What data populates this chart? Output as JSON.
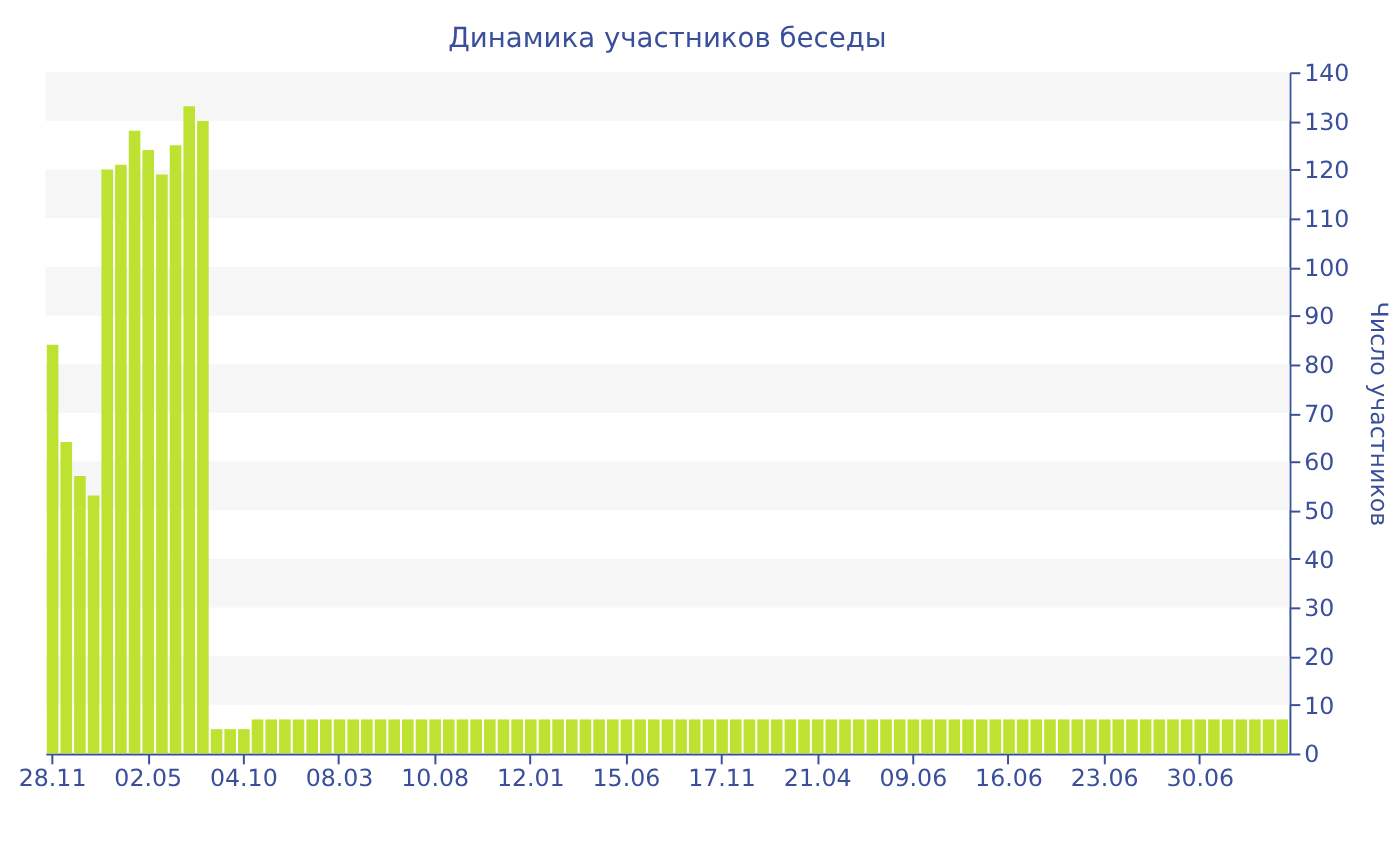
{
  "chart_data": {
    "type": "bar",
    "title": "Динамика участников беседы",
    "ylabel": "Число участников",
    "categories": [
      "28.11",
      null,
      null,
      null,
      null,
      null,
      null,
      "02.05",
      null,
      null,
      null,
      null,
      null,
      null,
      "04.10",
      null,
      null,
      null,
      null,
      null,
      null,
      "08.03",
      null,
      null,
      null,
      null,
      null,
      null,
      "10.08",
      null,
      null,
      null,
      null,
      null,
      null,
      "12.01",
      null,
      null,
      null,
      null,
      null,
      null,
      "15.06",
      null,
      null,
      null,
      null,
      null,
      null,
      "17.11",
      null,
      null,
      null,
      null,
      null,
      null,
      "21.04",
      null,
      null,
      null,
      null,
      null,
      null,
      "09.06",
      null,
      null,
      null,
      null,
      null,
      null,
      "16.06",
      null,
      null,
      null,
      null,
      null,
      null,
      "23.06",
      null,
      null,
      null,
      null,
      null,
      null,
      "30.06",
      null,
      null,
      null,
      null,
      null,
      null
    ],
    "values": [
      84,
      64,
      57,
      53,
      120,
      121,
      128,
      124,
      119,
      125,
      133,
      130,
      5,
      5,
      5,
      7,
      7,
      7,
      7,
      7,
      7,
      7,
      7,
      7,
      7,
      7,
      7,
      7,
      7,
      7,
      7,
      7,
      7,
      7,
      7,
      7,
      7,
      7,
      7,
      7,
      7,
      7,
      7,
      7,
      7,
      7,
      7,
      7,
      7,
      7,
      7,
      7,
      7,
      7,
      7,
      7,
      7,
      7,
      7,
      7,
      7,
      7,
      7,
      7,
      7,
      7,
      7,
      7,
      7,
      7,
      7,
      7,
      7,
      7,
      7,
      7,
      7,
      7,
      7,
      7,
      7,
      7,
      7,
      7,
      7,
      7,
      7,
      7,
      7,
      7,
      7
    ],
    "color": "#bde232",
    "ylim": [
      0,
      140
    ],
    "yticks": [
      0,
      10,
      20,
      30,
      40,
      50,
      60,
      70,
      80,
      90,
      100,
      110,
      120,
      130,
      140
    ],
    "bands": [
      {
        "axis": "y",
        "from": 10,
        "to": 20,
        "color": "#f6f6f6"
      },
      {
        "axis": "y",
        "from": 30,
        "to": 40,
        "color": "#f6f6f6"
      },
      {
        "axis": "y",
        "from": 50,
        "to": 60,
        "color": "#f6f6f6"
      },
      {
        "axis": "y",
        "from": 70,
        "to": 80,
        "color": "#f6f6f6"
      },
      {
        "axis": "y",
        "from": 90,
        "to": 100,
        "color": "#f6f6f6"
      },
      {
        "axis": "y",
        "from": 110,
        "to": 120,
        "color": "#f6f6f6"
      },
      {
        "axis": "y",
        "from": 130,
        "to": 140,
        "color": "#f6f6f6"
      }
    ]
  }
}
